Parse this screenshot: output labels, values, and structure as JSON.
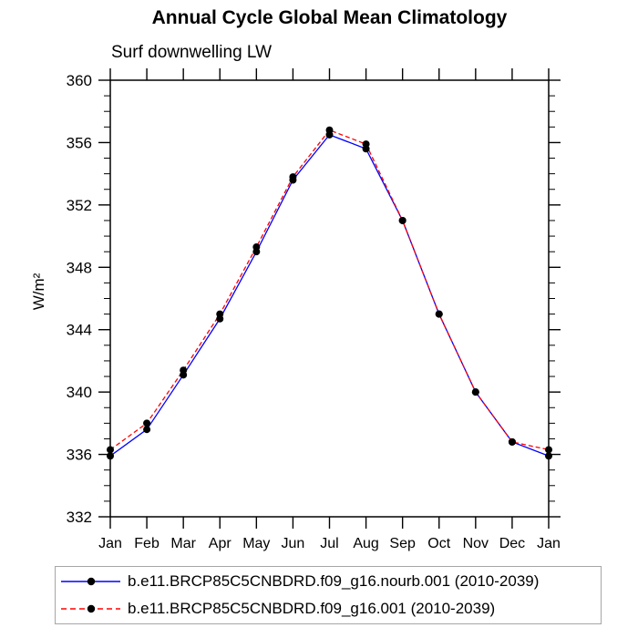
{
  "chart_data": {
    "type": "line",
    "title": "Annual Cycle Global Mean Climatology",
    "subtitle": "Surf downwelling LW",
    "ylabel": "W/m²",
    "xlabel": "",
    "categories": [
      "Jan",
      "Feb",
      "Mar",
      "Apr",
      "May",
      "Jun",
      "Jul",
      "Aug",
      "Sep",
      "Oct",
      "Nov",
      "Dec",
      "Jan"
    ],
    "ylim": [
      332,
      360
    ],
    "y_major_ticks": [
      332,
      336,
      340,
      344,
      348,
      352,
      356,
      360
    ],
    "y_minor_tick_step": 1,
    "grid": false,
    "legend_position": "bottom",
    "marker": {
      "shape": "dot",
      "color": "#000000"
    },
    "axis_color": "#000000",
    "series": [
      {
        "name": "b.e11.BRCP85C5CNBDRD.f09_g16.nourb.001 (2010-2039)",
        "color": "#0000ff",
        "line_style": "solid",
        "values": [
          335.9,
          337.6,
          341.1,
          344.7,
          349.0,
          353.6,
          356.5,
          355.6,
          351.0,
          345.0,
          340.0,
          336.8,
          335.9
        ]
      },
      {
        "name": "b.e11.BRCP85C5CNBDRD.f09_g16.001 (2010-2039)",
        "color": "#ff0000",
        "line_style": "dashed",
        "values": [
          336.3,
          338.0,
          341.4,
          345.0,
          349.3,
          353.8,
          356.8,
          355.9,
          351.0,
          345.0,
          340.0,
          336.8,
          336.3
        ]
      }
    ]
  }
}
